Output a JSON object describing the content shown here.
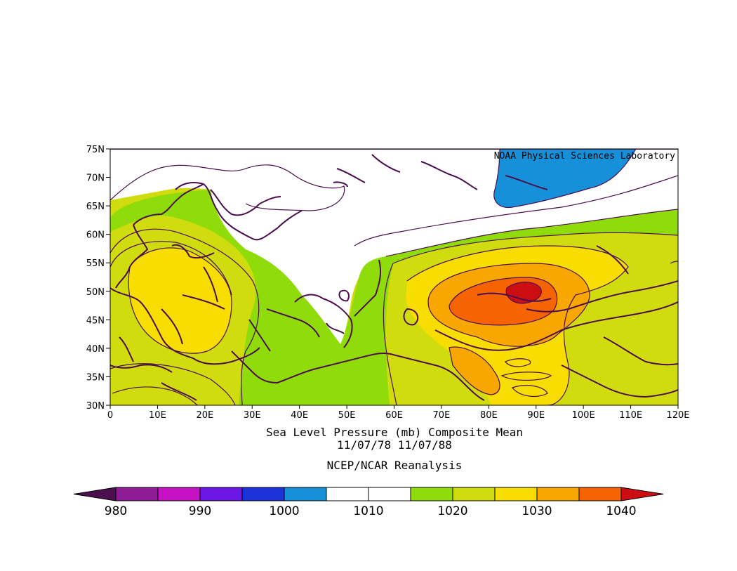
{
  "credit": "NOAA Physical Sciences Laboratory",
  "title": {
    "line1": "Sea Level Pressure (mb) Composite Mean",
    "line2": "11/07/78 11/07/88",
    "line3": "NCEP/NCAR Reanalysis"
  },
  "axes": {
    "lat_labels": [
      "75N",
      "70N",
      "65N",
      "60N",
      "55N",
      "50N",
      "45N",
      "40N",
      "35N",
      "30N"
    ],
    "lon_labels": [
      "0",
      "10E",
      "20E",
      "30E",
      "40E",
      "50E",
      "60E",
      "70E",
      "80E",
      "90E",
      "100E",
      "110E",
      "120E"
    ],
    "lat_range": [
      30,
      75
    ],
    "lon_range": [
      0,
      120
    ]
  },
  "colorbar": {
    "labels": [
      "980",
      "990",
      "1000",
      "1010",
      "1020",
      "1030",
      "1040"
    ],
    "colors": [
      "#4b0f4f",
      "#8f1c96",
      "#c412c4",
      "#6a17e6",
      "#1b34d9",
      "#1590d9",
      "#ffffff",
      "#ffffff",
      "#8fdc0a",
      "#d0dc0d",
      "#f7dd00",
      "#f7a700",
      "#f56400",
      "#cc0e12"
    ]
  },
  "contour_colors": {
    "light_blue": "#1590d9",
    "white": "#ffffff",
    "green": "#8fdc0a",
    "yellow_green": "#d0dc0d",
    "yellow": "#f7dd00",
    "orange": "#f7a700",
    "red_orange": "#f56400",
    "red": "#cc0e12",
    "coast": "#4b0f4f"
  }
}
